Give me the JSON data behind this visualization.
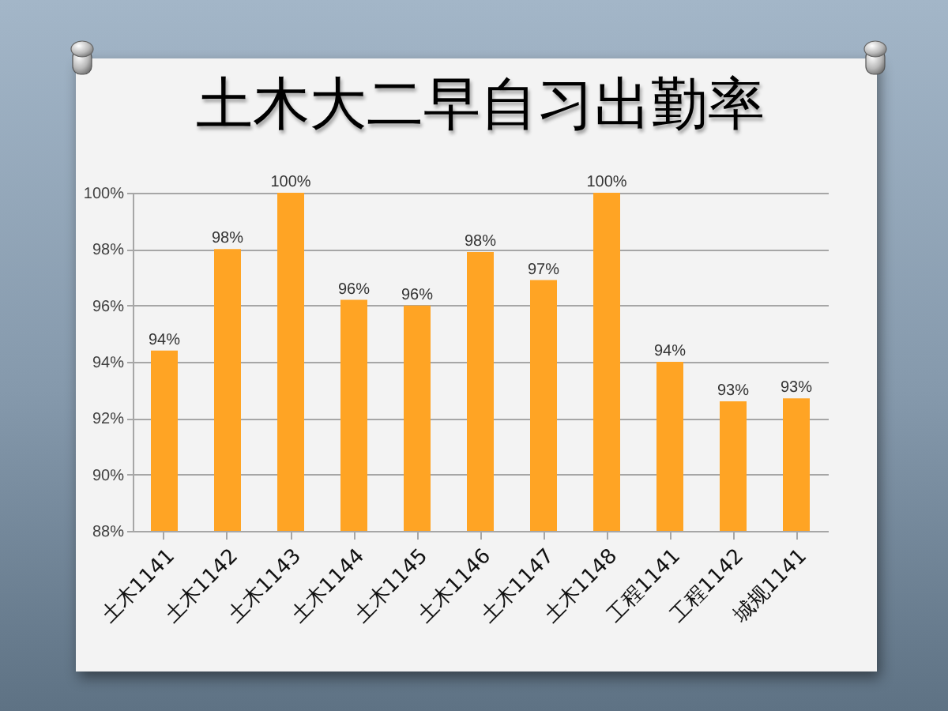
{
  "chart_data": {
    "type": "bar",
    "title": "土木大二早自习出勤率",
    "categories": [
      "土木1141",
      "土木1142",
      "土木1143",
      "土木1144",
      "土木1145",
      "土木1146",
      "土木1147",
      "土木1148",
      "工程1141",
      "工程1142",
      "城规1141"
    ],
    "values": [
      94.4,
      98.0,
      100,
      96.2,
      96.0,
      97.9,
      96.9,
      100,
      94.0,
      92.6,
      92.7
    ],
    "value_labels": [
      "94%",
      "98%",
      "100%",
      "96%",
      "96%",
      "98%",
      "97%",
      "100%",
      "94%",
      "93%",
      "93%"
    ],
    "color": "#ffa424",
    "ylim": [
      88,
      100
    ],
    "yticks": [
      {
        "value": 88,
        "label": "88%"
      },
      {
        "value": 90,
        "label": "90%"
      },
      {
        "value": 92,
        "label": "92%"
      },
      {
        "value": 94,
        "label": "94%"
      },
      {
        "value": 96,
        "label": "96%"
      },
      {
        "value": 98,
        "label": "98%"
      },
      {
        "value": 100,
        "label": "100%"
      }
    ],
    "grid": "y"
  }
}
